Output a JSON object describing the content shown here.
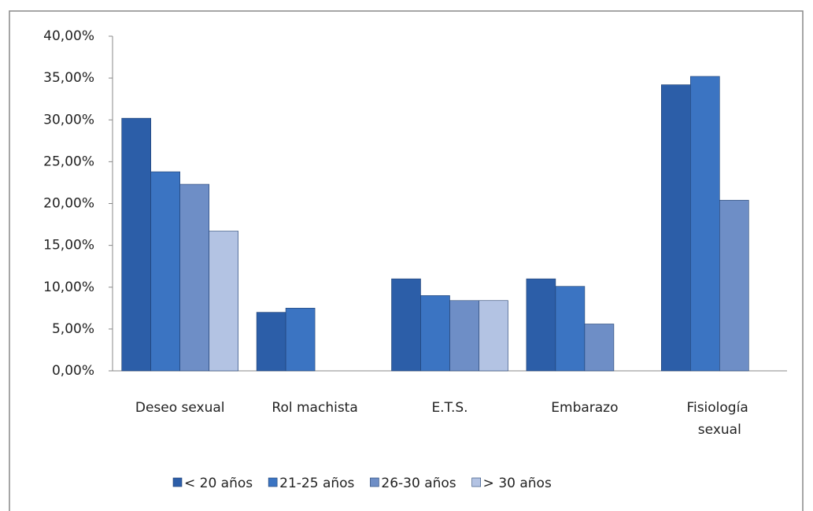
{
  "chart_data": {
    "type": "bar",
    "categories": [
      "Deseo sexual",
      "Rol machista",
      "E.T.S.",
      "Embarazo",
      "Fisiología sexual"
    ],
    "series": [
      {
        "name": "< 20 años",
        "color": "#2c5ea8",
        "values": [
          30.2,
          7.0,
          11.0,
          11.0,
          34.2
        ]
      },
      {
        "name": "21-25 años",
        "color": "#3b74c2",
        "values": [
          23.8,
          7.5,
          9.0,
          10.1,
          35.2
        ]
      },
      {
        "name": "26-30 años",
        "color": "#6e8ec6",
        "values": [
          22.3,
          null,
          8.4,
          5.6,
          20.4
        ]
      },
      {
        "name": "> 30 años",
        "color": "#b3c3e3",
        "values": [
          16.7,
          null,
          8.4,
          null,
          null
        ]
      }
    ],
    "ylim": [
      0,
      40
    ],
    "yticks": [
      {
        "value": 0,
        "label": "0,00%"
      },
      {
        "value": 5,
        "label": "5,00%"
      },
      {
        "value": 10,
        "label": "10,00%"
      },
      {
        "value": 15,
        "label": "15,00%"
      },
      {
        "value": 20,
        "label": "20,00%"
      },
      {
        "value": 25,
        "label": "25,00%"
      },
      {
        "value": 30,
        "label": "30,00%"
      },
      {
        "value": 35,
        "label": "35,00%"
      },
      {
        "value": 40,
        "label": "40,00%"
      }
    ],
    "grid": false,
    "legend": "bottom"
  }
}
